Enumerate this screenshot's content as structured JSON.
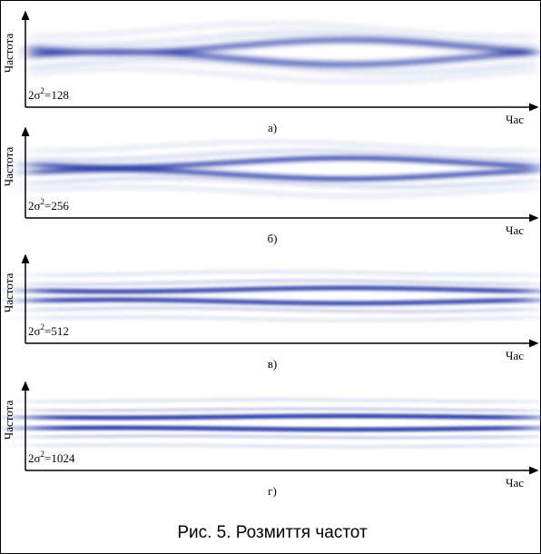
{
  "figure": {
    "panels": [
      {
        "y_label": "Частота",
        "x_label": "Час",
        "param_base": "2σ",
        "param_exp": "2",
        "param_value": "=128",
        "caption": "а)"
      },
      {
        "y_label": "Частота",
        "x_label": "Час",
        "param_base": "2σ",
        "param_exp": "2",
        "param_value": "=256",
        "caption": "б)"
      },
      {
        "y_label": "Частота",
        "x_label": "Час",
        "param_base": "2σ",
        "param_exp": "2",
        "param_value": "=512",
        "caption": "в)"
      },
      {
        "y_label": "Частота",
        "x_label": "Час",
        "param_base": "2σ",
        "param_exp": "2",
        "param_value": "=1024",
        "caption": "г)"
      }
    ],
    "caption": "Рис. 5. Розмиття частот"
  }
}
